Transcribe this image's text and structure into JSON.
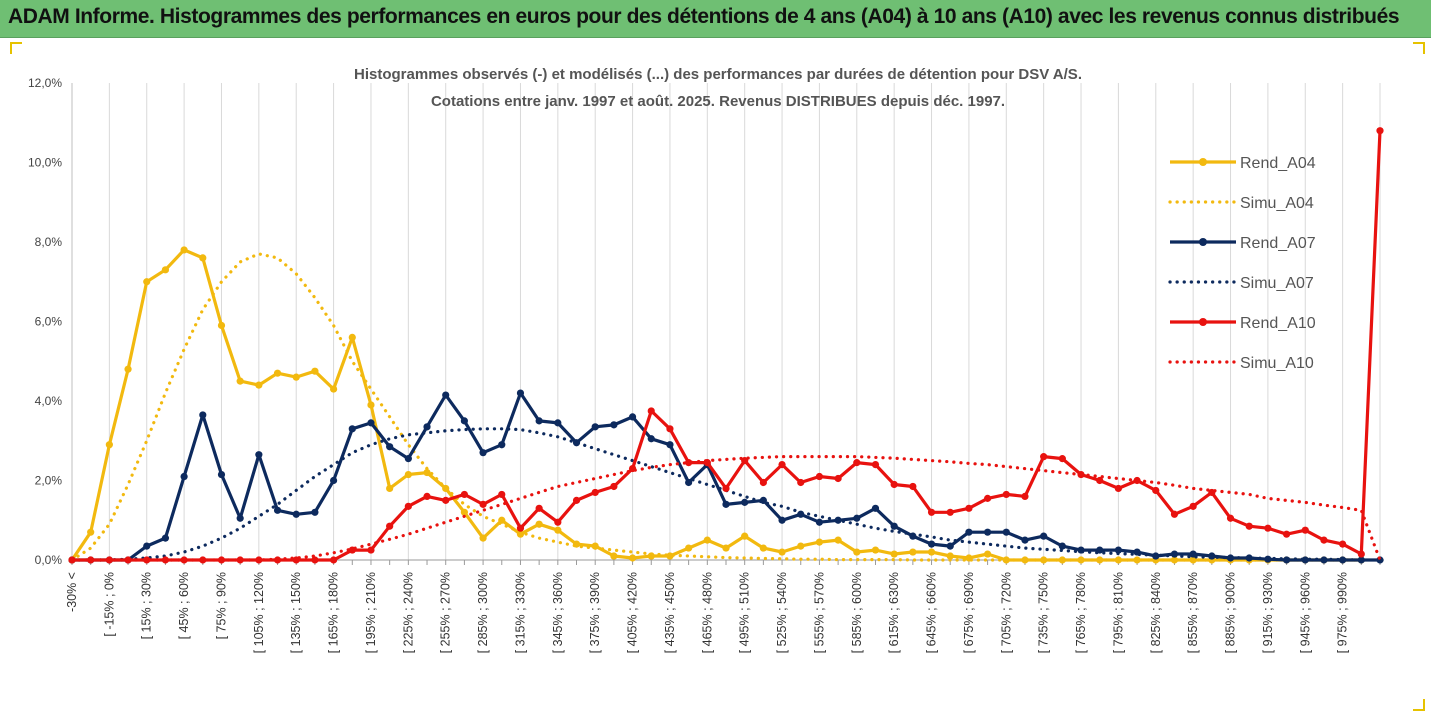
{
  "header": {
    "title": "ADAM Informe. Histogrammes des performances en euros pour des détentions de 4 ans (A04) à 10 ans (A10) avec les revenus connus distribués"
  },
  "chart_data": {
    "type": "line",
    "title": "Histogrammes observés (-) et modélisés (...) des performances par durées de détention pour DSV A/S.",
    "subtitle": "Cotations entre janv. 1997 et août. 2025. Revenus DISTRIBUES depuis déc. 1997.",
    "ylim": [
      0,
      12
    ],
    "yticks": [
      "0,0%",
      "2,0%",
      "4,0%",
      "6,0%",
      "8,0%",
      "10,0%",
      "12,0%"
    ],
    "grid": "vertical",
    "legend_position": "right",
    "x_labels": [
      "-30% <",
      "[ -15% ; 0%",
      "[ 15% ; 30%",
      "[ 45% ; 60%",
      "[ 75% ; 90%",
      "[ 105% ; 120%",
      "[ 135% ; 150%",
      "[ 165% ; 180%",
      "[ 195% ; 210%",
      "[ 225% ; 240%",
      "[ 255% ; 270%",
      "[ 285% ; 300%",
      "[ 315% ; 330%",
      "[ 345% ; 360%",
      "[ 375% ; 390%",
      "[ 405% ; 420%",
      "[ 435% ; 450%",
      "[ 465% ; 480%",
      "[ 495% ; 510%",
      "[ 525% ; 540%",
      "[ 555% ; 570%",
      "[ 585% ; 600%",
      "[ 615% ; 630%",
      "[ 645% ; 660%",
      "[ 675% ; 690%",
      "[ 705% ; 720%",
      "[ 735% ; 750%",
      "[ 765% ; 780%",
      "[ 795% ; 810%",
      "[ 825% ; 840%",
      "[ 855% ; 870%",
      "[ 885% ; 900%",
      "[ 915% ; 930%",
      "[ 945% ; 960%",
      "[ 975% ; 990%"
    ],
    "series": [
      {
        "name": "Rend_A04",
        "style": "solid",
        "color": "#f2b90f",
        "values": [
          0,
          0.7,
          2.9,
          4.8,
          7.0,
          7.3,
          7.8,
          7.6,
          5.9,
          4.5,
          4.4,
          4.7,
          4.6,
          4.75,
          4.3,
          5.6,
          3.9,
          1.8,
          2.15,
          2.2,
          1.8,
          1.2,
          0.55,
          1.0,
          0.65,
          0.9,
          0.75,
          0.4,
          0.35,
          0.1,
          0.05,
          0.1,
          0.1,
          0.3,
          0.5,
          0.3,
          0.6,
          0.3,
          0.2,
          0.35,
          0.45,
          0.5,
          0.2,
          0.25,
          0.15,
          0.2,
          0.2,
          0.1,
          0.05,
          0.15,
          0,
          0,
          0,
          0,
          0,
          0,
          0,
          0,
          0,
          0,
          0,
          0,
          0,
          0,
          0,
          0,
          0,
          0,
          0,
          0
        ]
      },
      {
        "name": "Simu_A04",
        "style": "dotted",
        "color": "#f2b90f",
        "values": [
          0,
          0.3,
          0.9,
          1.9,
          3.0,
          4.2,
          5.3,
          6.3,
          7.0,
          7.5,
          7.7,
          7.6,
          7.2,
          6.6,
          5.9,
          5.0,
          4.3,
          3.6,
          2.9,
          2.3,
          1.8,
          1.4,
          1.1,
          0.9,
          0.7,
          0.55,
          0.45,
          0.35,
          0.3,
          0.25,
          0.2,
          0.15,
          0.12,
          0.1,
          0.08,
          0.06,
          0.05,
          0.04,
          0.03,
          0.02,
          0.02,
          0.01,
          0.01,
          0.01,
          0.01,
          0,
          0,
          0,
          0,
          0,
          0,
          0,
          0,
          0,
          0,
          0,
          0,
          0,
          0,
          0,
          0,
          0,
          0,
          0,
          0,
          0,
          0,
          0,
          0,
          0
        ]
      },
      {
        "name": "Rend_A07",
        "style": "solid",
        "color": "#0d2a5e",
        "values": [
          0,
          0,
          0,
          0,
          0.35,
          0.55,
          2.1,
          3.65,
          2.15,
          1.05,
          2.65,
          1.25,
          1.15,
          1.2,
          2.0,
          3.3,
          3.45,
          2.85,
          2.55,
          3.35,
          4.15,
          3.5,
          2.7,
          2.9,
          4.2,
          3.5,
          3.45,
          2.95,
          3.35,
          3.4,
          3.6,
          3.05,
          2.9,
          1.95,
          2.4,
          1.4,
          1.45,
          1.5,
          1.0,
          1.15,
          0.95,
          1.0,
          1.05,
          1.3,
          0.85,
          0.6,
          0.4,
          0.35,
          0.7,
          0.7,
          0.7,
          0.5,
          0.6,
          0.35,
          0.25,
          0.25,
          0.25,
          0.2,
          0.1,
          0.15,
          0.15,
          0.1,
          0.05,
          0.05,
          0.02,
          0,
          0,
          0,
          0,
          0,
          0
        ]
      },
      {
        "name": "Simu_A07",
        "style": "dotted",
        "color": "#0d2a5e",
        "values": [
          0,
          0,
          0,
          0.02,
          0.05,
          0.1,
          0.2,
          0.35,
          0.55,
          0.8,
          1.1,
          1.4,
          1.75,
          2.1,
          2.4,
          2.7,
          2.9,
          3.05,
          3.15,
          3.2,
          3.25,
          3.28,
          3.3,
          3.3,
          3.28,
          3.2,
          3.1,
          2.95,
          2.8,
          2.65,
          2.5,
          2.35,
          2.2,
          2.05,
          1.9,
          1.75,
          1.6,
          1.45,
          1.35,
          1.2,
          1.1,
          1.0,
          0.9,
          0.8,
          0.72,
          0.65,
          0.58,
          0.5,
          0.45,
          0.4,
          0.35,
          0.3,
          0.27,
          0.24,
          0.21,
          0.18,
          0.16,
          0.14,
          0.12,
          0.1,
          0.08,
          0.07,
          0.06,
          0.05,
          0.04,
          0.03,
          0.02,
          0.02,
          0.01,
          0
        ]
      },
      {
        "name": "Rend_A10",
        "style": "solid",
        "color": "#e8120f",
        "values": [
          0,
          0,
          0,
          0,
          0,
          0,
          0,
          0,
          0,
          0,
          0,
          0,
          0,
          0,
          0,
          0.25,
          0.25,
          0.85,
          1.35,
          1.6,
          1.5,
          1.65,
          1.4,
          1.65,
          0.8,
          1.3,
          0.95,
          1.5,
          1.7,
          1.85,
          2.3,
          3.75,
          3.3,
          2.45,
          2.45,
          1.8,
          2.5,
          1.95,
          2.4,
          1.95,
          2.1,
          2.05,
          2.45,
          2.4,
          1.9,
          1.85,
          1.2,
          1.2,
          1.3,
          1.55,
          1.65,
          1.6,
          2.6,
          2.55,
          2.15,
          2.0,
          1.8,
          2.0,
          1.75,
          1.15,
          1.35,
          1.7,
          1.05,
          0.85,
          0.8,
          0.65,
          0.75,
          0.5,
          0.4,
          0.15,
          10.8
        ]
      },
      {
        "name": "Simu_A10",
        "style": "dotted",
        "color": "#e8120f",
        "values": [
          0,
          0,
          0,
          0,
          0,
          0,
          0,
          0,
          0,
          0,
          0,
          0.02,
          0.05,
          0.1,
          0.18,
          0.28,
          0.4,
          0.52,
          0.65,
          0.8,
          0.95,
          1.1,
          1.25,
          1.4,
          1.55,
          1.7,
          1.85,
          1.95,
          2.05,
          2.15,
          2.25,
          2.33,
          2.4,
          2.45,
          2.5,
          2.53,
          2.56,
          2.58,
          2.6,
          2.6,
          2.6,
          2.6,
          2.6,
          2.58,
          2.56,
          2.53,
          2.5,
          2.47,
          2.43,
          2.4,
          2.35,
          2.3,
          2.25,
          2.2,
          2.15,
          2.1,
          2.05,
          2.0,
          1.95,
          1.88,
          1.8,
          1.75,
          1.7,
          1.65,
          1.55,
          1.5,
          1.45,
          1.38,
          1.32,
          1.25,
          0
        ]
      }
    ]
  }
}
